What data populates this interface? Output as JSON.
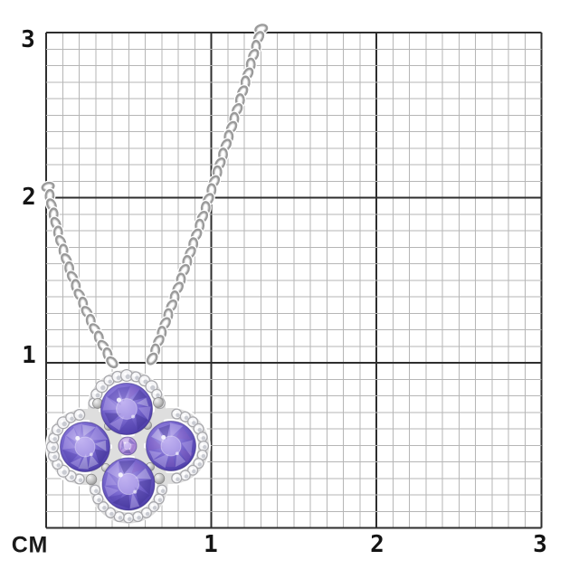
{
  "axes": {
    "unit_label": "СМ",
    "y_ticks": [
      {
        "label": "3"
      },
      {
        "label": "2"
      },
      {
        "label": "1"
      }
    ],
    "x_ticks": [
      {
        "label": "1"
      },
      {
        "label": "2"
      },
      {
        "label": "3"
      }
    ]
  },
  "grid": {
    "minor_per_cm": 10,
    "cm_cols": 3,
    "cm_rows": 3,
    "major_color": "#2e2e2e",
    "minor_color": "#b6b6b6",
    "background": "#ffffff",
    "label_color": "#141414"
  },
  "subject": {
    "kind": "necklace-pendant-photo",
    "description": "Silver cable chain necklace with clover quatrefoil pendant: four round violet tanzanite stones, small lavender center stone, white diamond halo",
    "metal_color": "#9a9a9a",
    "metal_highlight": "#d6d6d6",
    "diamond_fill": "#f5f5f7",
    "diamond_stroke": "#a9a9ad",
    "stone_colors": {
      "light": "#b4a6ea",
      "base": "#7b6ad0",
      "deep": "#5343ae",
      "dark": "#3c2f8e",
      "magenta": "#8c5fc2",
      "center": "#b493dd",
      "center_light": "#dcc9f0"
    }
  }
}
